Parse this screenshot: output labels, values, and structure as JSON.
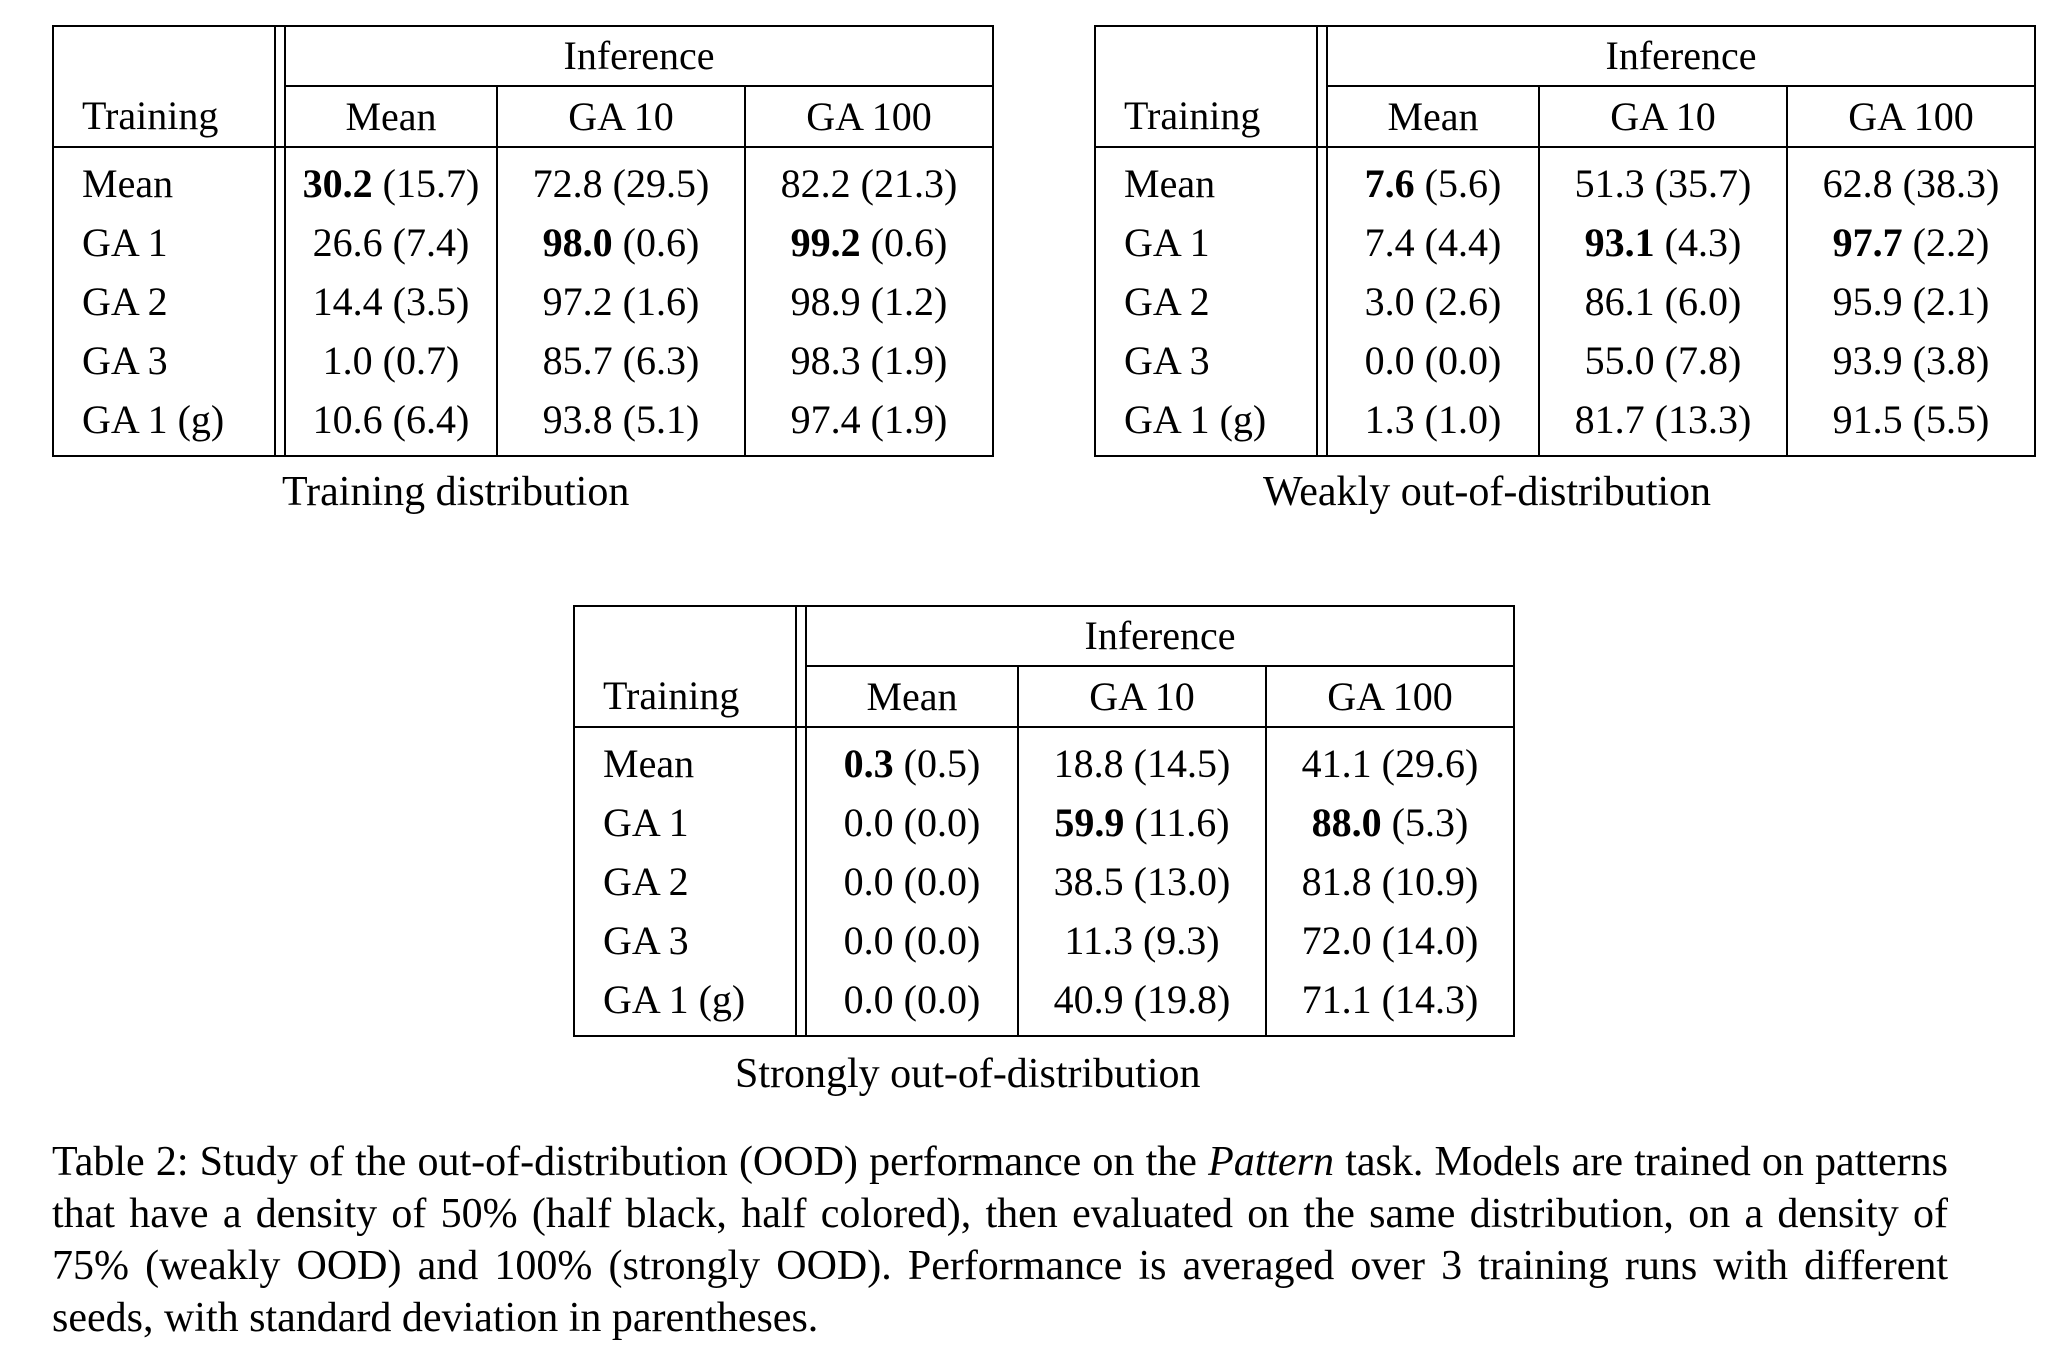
{
  "inference_label": "Inference",
  "training_label": "Training",
  "columns": [
    "Mean",
    "GA 10",
    "GA 100"
  ],
  "tables": [
    {
      "subtitle": "Training distribution",
      "rows": [
        {
          "label": "Mean",
          "cells": [
            {
              "v": "30.2",
              "sd": "(15.7)",
              "bold": true
            },
            {
              "v": "72.8",
              "sd": "(29.5)",
              "bold": false
            },
            {
              "v": "82.2",
              "sd": "(21.3)",
              "bold": false
            }
          ]
        },
        {
          "label": "GA 1",
          "cells": [
            {
              "v": "26.6",
              "sd": "(7.4)",
              "bold": false
            },
            {
              "v": "98.0",
              "sd": "(0.6)",
              "bold": true
            },
            {
              "v": "99.2",
              "sd": "(0.6)",
              "bold": true
            }
          ]
        },
        {
          "label": "GA 2",
          "cells": [
            {
              "v": "14.4",
              "sd": "(3.5)",
              "bold": false
            },
            {
              "v": "97.2",
              "sd": "(1.6)",
              "bold": false
            },
            {
              "v": "98.9",
              "sd": "(1.2)",
              "bold": false
            }
          ]
        },
        {
          "label": "GA 3",
          "cells": [
            {
              "v": "1.0",
              "sd": "(0.7)",
              "bold": false
            },
            {
              "v": "85.7",
              "sd": "(6.3)",
              "bold": false
            },
            {
              "v": "98.3",
              "sd": "(1.9)",
              "bold": false
            }
          ]
        },
        {
          "label": "GA 1 (g)",
          "cells": [
            {
              "v": "10.6",
              "sd": "(6.4)",
              "bold": false
            },
            {
              "v": "93.8",
              "sd": "(5.1)",
              "bold": false
            },
            {
              "v": "97.4",
              "sd": "(1.9)",
              "bold": false
            }
          ]
        }
      ]
    },
    {
      "subtitle": "Weakly out-of-distribution",
      "rows": [
        {
          "label": "Mean",
          "cells": [
            {
              "v": "7.6",
              "sd": "(5.6)",
              "bold": true
            },
            {
              "v": "51.3",
              "sd": "(35.7)",
              "bold": false
            },
            {
              "v": "62.8",
              "sd": "(38.3)",
              "bold": false
            }
          ]
        },
        {
          "label": "GA 1",
          "cells": [
            {
              "v": "7.4",
              "sd": "(4.4)",
              "bold": false
            },
            {
              "v": "93.1",
              "sd": "(4.3)",
              "bold": true
            },
            {
              "v": "97.7",
              "sd": "(2.2)",
              "bold": true
            }
          ]
        },
        {
          "label": "GA 2",
          "cells": [
            {
              "v": "3.0",
              "sd": "(2.6)",
              "bold": false
            },
            {
              "v": "86.1",
              "sd": "(6.0)",
              "bold": false
            },
            {
              "v": "95.9",
              "sd": "(2.1)",
              "bold": false
            }
          ]
        },
        {
          "label": "GA 3",
          "cells": [
            {
              "v": "0.0",
              "sd": "(0.0)",
              "bold": false
            },
            {
              "v": "55.0",
              "sd": "(7.8)",
              "bold": false
            },
            {
              "v": "93.9",
              "sd": "(3.8)",
              "bold": false
            }
          ]
        },
        {
          "label": "GA 1 (g)",
          "cells": [
            {
              "v": "1.3",
              "sd": "(1.0)",
              "bold": false
            },
            {
              "v": "81.7",
              "sd": "(13.3)",
              "bold": false
            },
            {
              "v": "91.5",
              "sd": "(5.5)",
              "bold": false
            }
          ]
        }
      ]
    },
    {
      "subtitle": "Strongly out-of-distribution",
      "rows": [
        {
          "label": "Mean",
          "cells": [
            {
              "v": "0.3",
              "sd": "(0.5)",
              "bold": true
            },
            {
              "v": "18.8",
              "sd": "(14.5)",
              "bold": false
            },
            {
              "v": "41.1",
              "sd": "(29.6)",
              "bold": false
            }
          ]
        },
        {
          "label": "GA 1",
          "cells": [
            {
              "v": "0.0",
              "sd": "(0.0)",
              "bold": false
            },
            {
              "v": "59.9",
              "sd": "(11.6)",
              "bold": true
            },
            {
              "v": "88.0",
              "sd": "(5.3)",
              "bold": true
            }
          ]
        },
        {
          "label": "GA 2",
          "cells": [
            {
              "v": "0.0",
              "sd": "(0.0)",
              "bold": false
            },
            {
              "v": "38.5",
              "sd": "(13.0)",
              "bold": false
            },
            {
              "v": "81.8",
              "sd": "(10.9)",
              "bold": false
            }
          ]
        },
        {
          "label": "GA 3",
          "cells": [
            {
              "v": "0.0",
              "sd": "(0.0)",
              "bold": false
            },
            {
              "v": "11.3",
              "sd": "(9.3)",
              "bold": false
            },
            {
              "v": "72.0",
              "sd": "(14.0)",
              "bold": false
            }
          ]
        },
        {
          "label": "GA 1 (g)",
          "cells": [
            {
              "v": "0.0",
              "sd": "(0.0)",
              "bold": false
            },
            {
              "v": "40.9",
              "sd": "(19.8)",
              "bold": false
            },
            {
              "v": "71.1",
              "sd": "(14.3)",
              "bold": false
            }
          ]
        }
      ]
    }
  ],
  "caption": {
    "prefix": "Table 2:  Study of the out-of-distribution (OOD) performance on the ",
    "task": "Pattern",
    "suffix": " task.  Models are trained on patterns that have a density of 50% (half black, half colored), then evaluated on the same distribution, on a density of 75% (weakly OOD) and 100% (strongly OOD). Performance is averaged over 3 training runs with different seeds, with standard deviation in parentheses."
  }
}
